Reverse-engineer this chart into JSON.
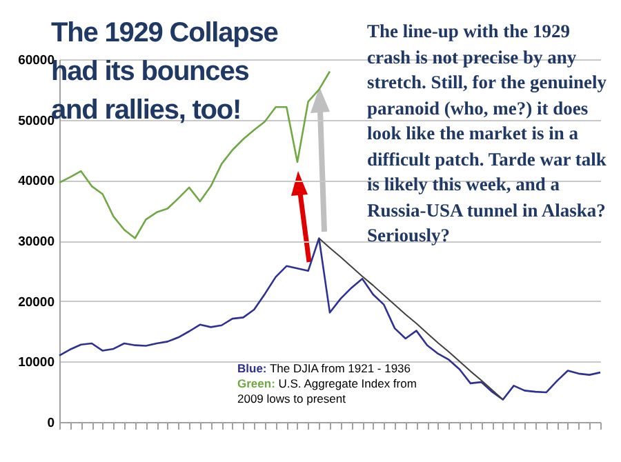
{
  "chart_data": {
    "type": "line",
    "title": "The 1929 Collapse had its bounces and rallies, too!",
    "annotations": [
      "The line-up with the 1929 crash is not precise by any stretch. Still, for the genuinely paranoid (who, me?) it does look like the market is in a difficult patch.  Tarde war talk is likely this week, and a Russia-USA tunnel in Alaska?  Seriously?",
      "Blue: The DJIA from 1921 - 1936",
      "Green: U.S. Aggregate Index from 2009 lows to present"
    ],
    "categories": [
      null,
      null,
      null,
      null,
      null,
      null,
      null,
      null,
      null,
      null,
      null,
      null,
      null,
      null,
      null,
      null,
      null,
      null,
      null,
      null,
      null,
      null,
      null,
      null,
      null,
      null,
      null,
      null,
      null,
      null,
      null,
      null,
      null,
      null,
      null,
      null,
      null,
      null,
      null,
      null,
      null,
      null,
      null,
      null,
      null,
      null,
      null,
      null,
      null,
      null,
      null
    ],
    "series": [
      {
        "color": "#2e3192",
        "values": [
          11000,
          12000,
          12800,
          13000,
          11800,
          12100,
          13000,
          12700,
          12600,
          13000,
          13300,
          14000,
          15000,
          16100,
          15700,
          16000,
          17100,
          17300,
          18600,
          21200,
          24000,
          25800,
          25400,
          25000,
          30400,
          18100,
          20400,
          22200,
          23700,
          21100,
          19400,
          15500,
          13800,
          15100,
          12700,
          11300,
          10300,
          8700,
          6400,
          6600,
          5000,
          3700,
          6000,
          5200,
          5000,
          4900,
          6800,
          8500,
          8000,
          7800,
          8200
        ]
      },
      {
        "color": "#70a844",
        "values": [
          39600,
          40500,
          41500,
          39000,
          37700,
          34000,
          31800,
          30400,
          33500,
          34700,
          35300,
          37000,
          38800,
          36500,
          39000,
          42700,
          45000,
          46800,
          48300,
          49700,
          52100,
          52100,
          43000,
          53000,
          55000,
          58000,
          null,
          null,
          null,
          null,
          null,
          null,
          null,
          null,
          null,
          null,
          null,
          null,
          null,
          null,
          null,
          null,
          null,
          null,
          null,
          null,
          null,
          null,
          null,
          null,
          null
        ]
      },
      {
        "type": "line",
        "color": "#404040",
        "values": [
          null,
          null,
          null,
          null,
          null,
          null,
          null,
          null,
          null,
          null,
          null,
          null,
          null,
          null,
          null,
          null,
          null,
          null,
          null,
          null,
          null,
          null,
          null,
          null,
          30400,
          28800,
          27300,
          25700,
          24100,
          22600,
          21000,
          19400,
          17800,
          16300,
          14700,
          13100,
          11600,
          10000,
          8400,
          6900,
          5300,
          3700,
          null,
          null,
          null,
          null,
          null,
          null,
          null,
          null,
          null
        ]
      }
    ],
    "ylim": [
      0,
      60000
    ],
    "yticks": [
      0,
      10000,
      20000,
      30000,
      40000,
      50000,
      60000
    ],
    "grid": "y",
    "tick_labels": "y"
  }
}
